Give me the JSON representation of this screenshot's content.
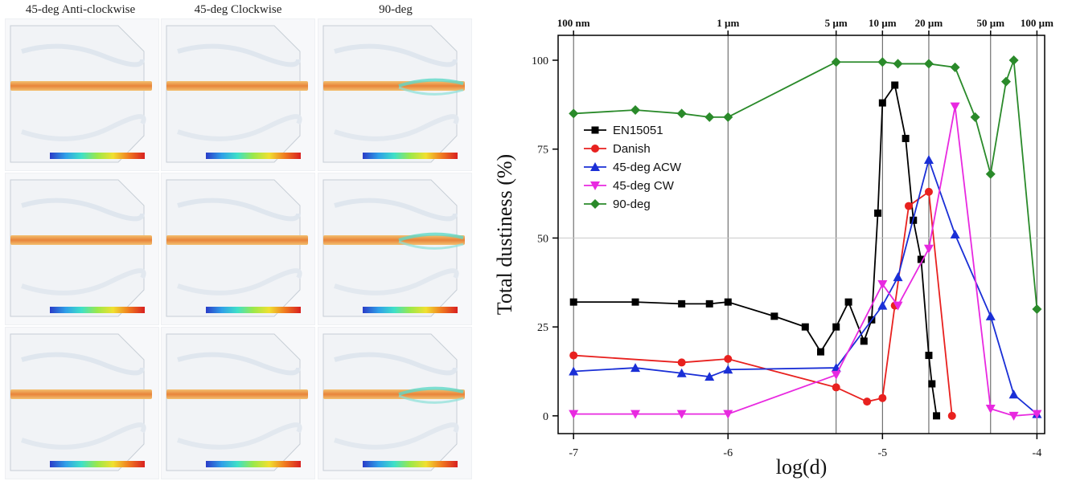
{
  "left_panel": {
    "column_titles": [
      "45-deg Anti-clockwise",
      "45-deg Clockwise",
      "90-deg"
    ],
    "rows": 3,
    "colorbar_colors": [
      "#2a3cc8",
      "#2f9fe8",
      "#3fe0c8",
      "#9be84a",
      "#f0e030",
      "#f07a20",
      "#d82020"
    ]
  },
  "chart_data": {
    "type": "line",
    "xlabel": "log(d)",
    "ylabel": "Total dustiness (%)",
    "xlim": [
      -7.1,
      -3.95
    ],
    "ylim": [
      -5,
      107
    ],
    "x_ticks": [
      -7,
      -6,
      -5,
      -4
    ],
    "x_tick_labels": [
      "-7",
      "-6",
      "-5",
      "-4"
    ],
    "y_ticks": [
      0,
      25,
      50,
      75,
      100
    ],
    "y_tick_labels": [
      "0",
      "25",
      "50",
      "75",
      "100"
    ],
    "top_axis": [
      {
        "label": "100 nm",
        "x": -7.0
      },
      {
        "label": "1 µm",
        "x": -6.0
      },
      {
        "label": "5 µm",
        "x": -5.3
      },
      {
        "label": "10 µm",
        "x": -5.0
      },
      {
        "label": "20 µm",
        "x": -4.7
      },
      {
        "label": "50 µm",
        "x": -4.3
      },
      {
        "label": "100 µm",
        "x": -4.0
      }
    ],
    "vertical_lines": [
      -7.0,
      -6.0,
      -5.3,
      -5.0,
      -4.7,
      -4.3,
      -4.0
    ],
    "horizontal_grid": [
      50
    ],
    "legend_position": "left-middle",
    "series": [
      {
        "name": "EN15051",
        "color": "#000000",
        "marker": "square",
        "x": [
          -7.0,
          -6.6,
          -6.3,
          -6.12,
          -6.0,
          -5.7,
          -5.5,
          -5.4,
          -5.3,
          -5.22,
          -5.12,
          -5.07,
          -5.03,
          -5.0,
          -4.92,
          -4.85,
          -4.8,
          -4.75,
          -4.7,
          -4.68,
          -4.65
        ],
        "y": [
          32,
          32,
          31.5,
          31.5,
          32,
          28,
          25,
          18,
          25,
          32,
          21,
          27,
          57,
          88,
          93,
          78,
          55,
          44,
          17,
          9,
          0
        ]
      },
      {
        "name": "Danish",
        "color": "#e8211f",
        "marker": "circle",
        "x": [
          -7.0,
          -6.3,
          -6.0,
          -5.3,
          -5.1,
          -5.0,
          -4.92,
          -4.83,
          -4.7,
          -4.55
        ],
        "y": [
          17,
          15,
          16,
          8,
          4,
          5,
          31,
          59,
          63,
          0
        ]
      },
      {
        "name": "45-deg ACW",
        "color": "#1a2fd6",
        "marker": "triangle-up",
        "x": [
          -7.0,
          -6.6,
          -6.3,
          -6.12,
          -6.0,
          -5.3,
          -5.0,
          -4.9,
          -4.7,
          -4.53,
          -4.3,
          -4.15,
          -4.0
        ],
        "y": [
          12.5,
          13.5,
          12,
          11,
          13,
          13.5,
          31,
          39,
          72,
          51,
          28,
          6,
          0.5
        ]
      },
      {
        "name": "45-deg CW",
        "color": "#e829e0",
        "marker": "triangle-down",
        "x": [
          -7.0,
          -6.6,
          -6.3,
          -6.0,
          -5.3,
          -5.0,
          -4.9,
          -4.7,
          -4.53,
          -4.3,
          -4.15,
          -4.0
        ],
        "y": [
          0.5,
          0.5,
          0.5,
          0.5,
          11.5,
          37,
          31,
          47,
          87,
          2,
          0,
          0.5
        ]
      },
      {
        "name": "90-deg",
        "color": "#2a8a2a",
        "marker": "diamond",
        "x": [
          -7.0,
          -6.6,
          -6.3,
          -6.12,
          -6.0,
          -5.3,
          -5.0,
          -4.9,
          -4.7,
          -4.53,
          -4.4,
          -4.3,
          -4.2,
          -4.15,
          -4.0
        ],
        "y": [
          85,
          86,
          85,
          84,
          84,
          99.5,
          99.5,
          99,
          99,
          98,
          84,
          68,
          94,
          100,
          30
        ]
      }
    ]
  }
}
